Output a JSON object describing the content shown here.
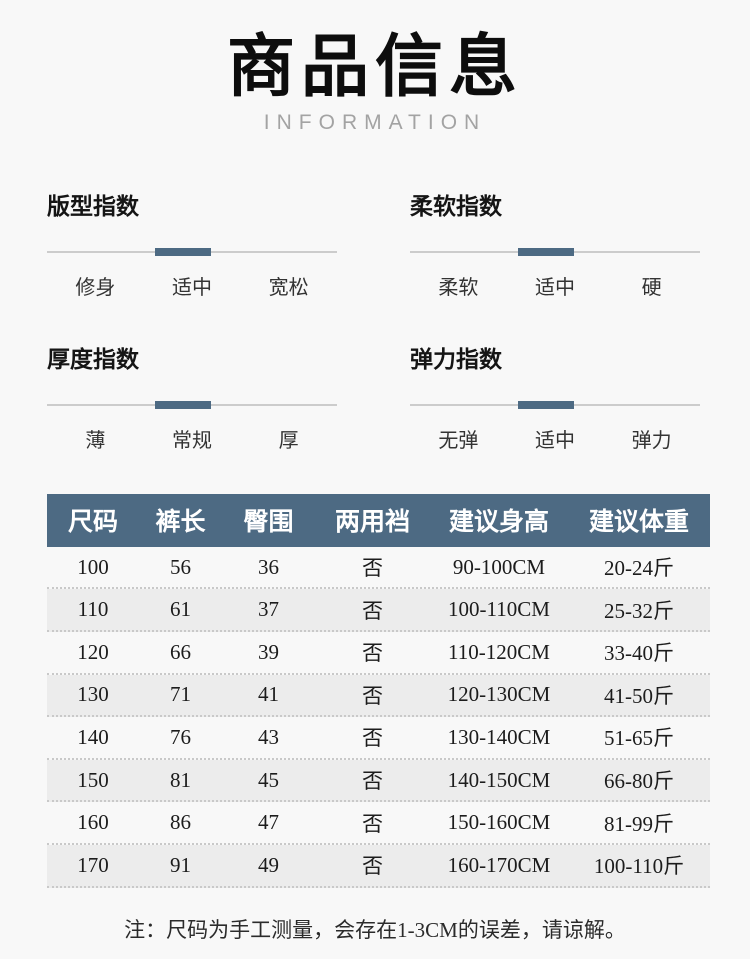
{
  "header": {
    "title": "商品信息",
    "subtitle": "INFORMATION"
  },
  "indexes": [
    {
      "title": "版型指数",
      "labels": [
        "修身",
        "适中",
        "宽松"
      ],
      "selected_index": 1,
      "selected_label": "适中"
    },
    {
      "title": "柔软指数",
      "labels": [
        "柔软",
        "适中",
        "硬"
      ],
      "selected_index": 1,
      "selected_label": "适中"
    },
    {
      "title": "厚度指数",
      "labels": [
        "薄",
        "常规",
        "厚"
      ],
      "selected_index": 1,
      "selected_label": "常规"
    },
    {
      "title": "弹力指数",
      "labels": [
        "无弹",
        "适中",
        "弹力"
      ],
      "selected_index": 1,
      "selected_label": "适中"
    }
  ],
  "size_table": {
    "headers": [
      "尺码",
      "裤长",
      "臀围",
      "两用裆",
      "建议身高",
      "建议体重"
    ],
    "rows": [
      [
        "100",
        "56",
        "36",
        "否",
        "90-100CM",
        "20-24斤"
      ],
      [
        "110",
        "61",
        "37",
        "否",
        "100-110CM",
        "25-32斤"
      ],
      [
        "120",
        "66",
        "39",
        "否",
        "110-120CM",
        "33-40斤"
      ],
      [
        "130",
        "71",
        "41",
        "否",
        "120-130CM",
        "41-50斤"
      ],
      [
        "140",
        "76",
        "43",
        "否",
        "130-140CM",
        "51-65斤"
      ],
      [
        "150",
        "81",
        "45",
        "否",
        "140-150CM",
        "66-80斤"
      ],
      [
        "160",
        "86",
        "47",
        "否",
        "150-160CM",
        "81-99斤"
      ],
      [
        "170",
        "91",
        "49",
        "否",
        "160-170CM",
        "100-110斤"
      ]
    ]
  },
  "note": "注：尺码为手工测量，会存在1-3CM的误差，请谅解。",
  "colors": {
    "accent": "#4d6a83",
    "background": "#f8f8f8",
    "row_alt": "#ececec",
    "dotted_line": "#c9c9c9",
    "subtitle_gray": "#a3a3a3"
  }
}
